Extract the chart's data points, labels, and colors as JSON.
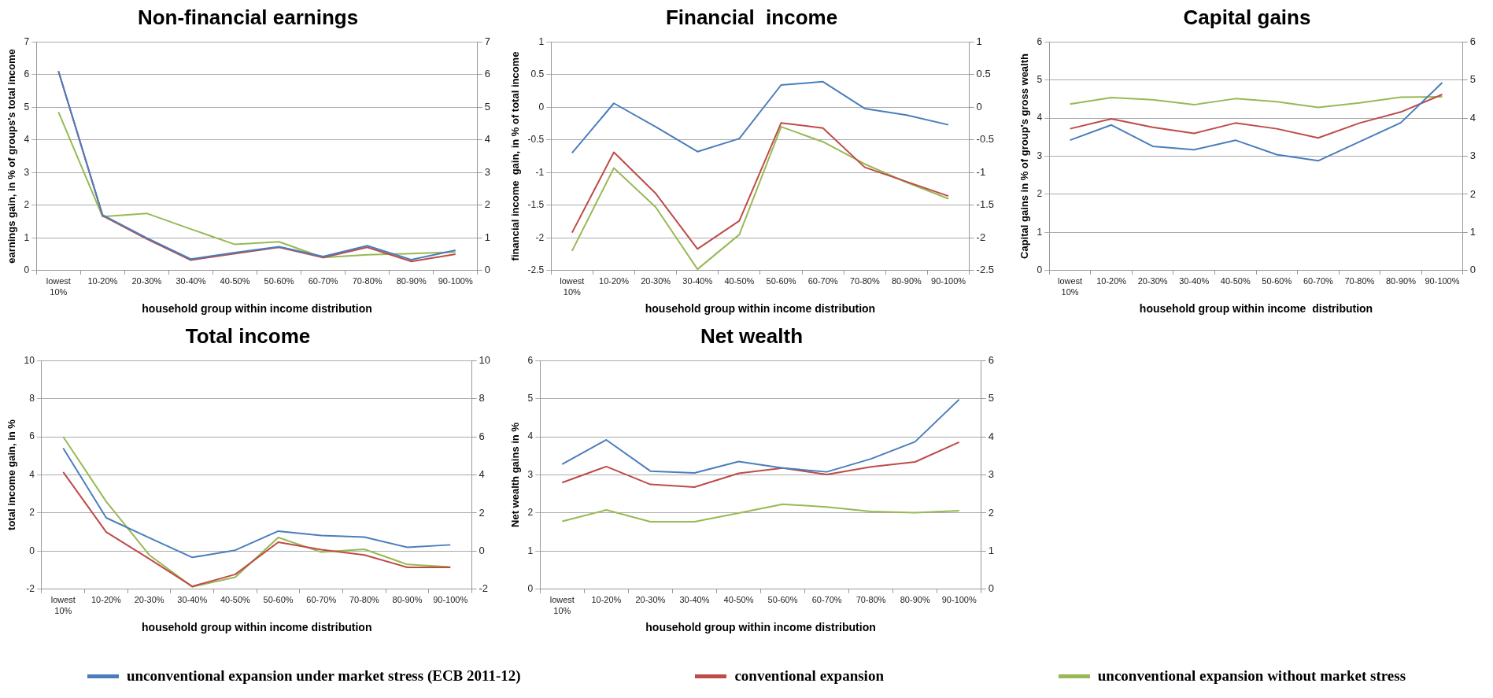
{
  "chart_data": [
    {
      "type": "line",
      "title": "Non-financial earnings",
      "xlabel": "household group within income distribution",
      "ylabel": "earnings gain, in % of groups's total income",
      "categories": [
        "lowest 10%",
        "10-20%",
        "20-30%",
        "30-40%",
        "40-50%",
        "50-60%",
        "60-70%",
        "70-80%",
        "80-90%",
        "90-100%"
      ],
      "ylim": [
        0,
        7
      ],
      "yticks": [
        0,
        1,
        2,
        3,
        4,
        5,
        6,
        7
      ],
      "y2lim": [
        0,
        7
      ],
      "y2ticks": [
        0,
        1,
        2,
        3,
        4,
        5,
        6,
        7
      ],
      "grid": "y",
      "marker": "none",
      "legend": "bottom",
      "series": [
        {
          "name": "unconventional expansion under market stress (ECB 2011-12)",
          "color": "#4a7ebb",
          "values": [
            6.1,
            1.7,
            1.0,
            0.35,
            0.55,
            0.73,
            0.43,
            0.76,
            0.33,
            0.62
          ]
        },
        {
          "name": "conventional expansion",
          "color": "#be4b48",
          "values": [
            6.1,
            1.68,
            0.97,
            0.32,
            0.52,
            0.71,
            0.4,
            0.71,
            0.28,
            0.5
          ]
        },
        {
          "name": "unconventional expansion without market stress",
          "color": "#98b954",
          "values": [
            4.85,
            1.65,
            1.75,
            1.27,
            0.8,
            0.88,
            0.4,
            0.48,
            0.52,
            0.57
          ]
        }
      ]
    },
    {
      "type": "line",
      "title": "Financial  income",
      "xlabel": "household group within income distribution",
      "ylabel": "financial income  gain, in % of total income",
      "categories": [
        "lowest 10%",
        "10-20%",
        "20-30%",
        "30-40%",
        "40-50%",
        "50-60%",
        "60-70%",
        "70-80%",
        "80-90%",
        "90-100%"
      ],
      "ylim": [
        -2.5,
        1
      ],
      "yticks": [
        -2.5,
        -2,
        -1.5,
        -1,
        -0.5,
        0,
        0.5,
        1
      ],
      "y2lim": [
        -2.5,
        1
      ],
      "y2ticks": [
        -2.5,
        -2,
        -1.5,
        -1,
        -0.5,
        0,
        0.5,
        1
      ],
      "grid": "y",
      "marker": "none",
      "series": [
        {
          "color": "#4a7ebb",
          "values": [
            -0.7,
            0.06,
            -0.3,
            -0.68,
            -0.48,
            0.34,
            0.39,
            -0.02,
            -0.12,
            -0.27
          ]
        },
        {
          "color": "#be4b48",
          "values": [
            -1.92,
            -0.69,
            -1.32,
            -2.17,
            -1.74,
            -0.24,
            -0.32,
            -0.92,
            -1.14,
            -1.36
          ]
        },
        {
          "color": "#98b954",
          "values": [
            -2.2,
            -0.93,
            -1.53,
            -2.48,
            -1.95,
            -0.3,
            -0.53,
            -0.87,
            -1.15,
            -1.4
          ]
        }
      ]
    },
    {
      "type": "line",
      "title": "Capital gains",
      "xlabel": "household group within income  distribution",
      "ylabel": "Capital gains in % of group's gross wealth",
      "categories": [
        "lowest 10%",
        "10-20%",
        "20-30%",
        "30-40%",
        "40-50%",
        "50-60%",
        "60-70%",
        "70-80%",
        "80-90%",
        "90-100%"
      ],
      "ylim": [
        0,
        6
      ],
      "yticks": [
        0,
        1,
        2,
        3,
        4,
        5,
        6
      ],
      "y2lim": [
        0,
        6
      ],
      "y2ticks": [
        0,
        1,
        2,
        3,
        4,
        5,
        6
      ],
      "grid": "y",
      "marker": "none",
      "series": [
        {
          "color": "#4a7ebb",
          "values": [
            3.42,
            3.82,
            3.26,
            3.17,
            3.42,
            3.04,
            2.88,
            3.38,
            3.88,
            4.93
          ]
        },
        {
          "color": "#be4b48",
          "values": [
            3.72,
            3.98,
            3.76,
            3.6,
            3.87,
            3.72,
            3.48,
            3.87,
            4.16,
            4.62
          ]
        },
        {
          "color": "#98b954",
          "values": [
            4.37,
            4.54,
            4.48,
            4.35,
            4.51,
            4.43,
            4.28,
            4.4,
            4.55,
            4.56
          ]
        }
      ]
    },
    {
      "type": "line",
      "title": "Total income",
      "xlabel": "household group within income distribution",
      "ylabel": "total income gain, in %",
      "categories": [
        "lowest 10%",
        "10-20%",
        "20-30%",
        "30-40%",
        "40-50%",
        "50-60%",
        "60-70%",
        "70-80%",
        "80-90%",
        "90-100%"
      ],
      "ylim": [
        -2,
        10
      ],
      "yticks": [
        -2,
        0,
        2,
        4,
        6,
        8,
        10
      ],
      "y2lim": [
        -2,
        10
      ],
      "y2ticks": [
        -2,
        0,
        2,
        4,
        6,
        8,
        10
      ],
      "grid": "y",
      "marker": "none",
      "series": [
        {
          "color": "#4a7ebb",
          "values": [
            5.4,
            1.75,
            0.7,
            -0.33,
            0.05,
            1.05,
            0.82,
            0.74,
            0.2,
            0.33
          ]
        },
        {
          "color": "#be4b48",
          "values": [
            4.15,
            1.0,
            -0.4,
            -1.85,
            -1.22,
            0.47,
            0.08,
            -0.2,
            -0.85,
            -0.85
          ]
        },
        {
          "color": "#98b954",
          "values": [
            6.0,
            2.6,
            -0.2,
            -1.87,
            -1.37,
            0.72,
            -0.05,
            0.1,
            -0.7,
            -0.83
          ]
        }
      ]
    },
    {
      "type": "line",
      "title": "Net wealth",
      "xlabel": "household group within income distribution",
      "ylabel": "Net wealth gains in %",
      "categories": [
        "lowest 10%",
        "10-20%",
        "20-30%",
        "30-40%",
        "40-50%",
        "50-60%",
        "60-70%",
        "70-80%",
        "80-90%",
        "90-100%"
      ],
      "ylim": [
        0,
        6
      ],
      "yticks": [
        0,
        1,
        2,
        3,
        4,
        5,
        6
      ],
      "y2lim": [
        0,
        6
      ],
      "y2ticks": [
        0,
        1,
        2,
        3,
        4,
        5,
        6
      ],
      "grid": "y",
      "marker": "none",
      "series": [
        {
          "color": "#4a7ebb",
          "values": [
            3.28,
            3.92,
            3.1,
            3.05,
            3.35,
            3.18,
            3.08,
            3.42,
            3.87,
            4.98
          ]
        },
        {
          "color": "#be4b48",
          "values": [
            2.8,
            3.22,
            2.75,
            2.68,
            3.04,
            3.18,
            3.01,
            3.21,
            3.34,
            3.86
          ]
        },
        {
          "color": "#98b954",
          "values": [
            1.78,
            2.08,
            1.77,
            1.77,
            2.0,
            2.23,
            2.16,
            2.04,
            2.01,
            2.06
          ]
        }
      ]
    }
  ]
}
